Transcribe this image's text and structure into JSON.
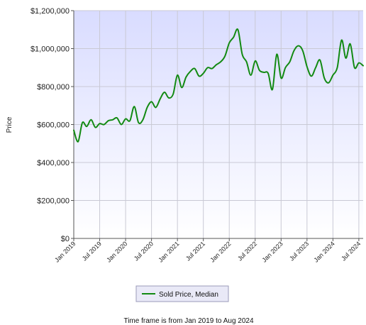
{
  "chart_data": {
    "type": "line",
    "title": "",
    "xlabel": "",
    "ylabel": "Price",
    "ylim": [
      0,
      1200000
    ],
    "yticks": [
      0,
      200000,
      400000,
      600000,
      800000,
      1000000,
      1200000
    ],
    "ytick_labels": [
      "$0",
      "$200,000",
      "$400,000",
      "$600,000",
      "$800,000",
      "$1,000,000",
      "$1,200,000"
    ],
    "xlim": [
      "2019-01",
      "2024-08"
    ],
    "xticks": [
      "2019-01",
      "2019-07",
      "2020-01",
      "2020-07",
      "2021-01",
      "2021-07",
      "2022-01",
      "2022-07",
      "2023-01",
      "2023-07",
      "2024-01",
      "2024-07"
    ],
    "xtick_labels": [
      "Jan 2019",
      "Jul 2019",
      "Jan 2020",
      "Jul 2020",
      "Jan 2021",
      "Jul 2021",
      "Jan 2022",
      "Jul 2022",
      "Jan 2023",
      "Jul 2023",
      "Jan 2024",
      "Jul 2024"
    ],
    "grid": true,
    "legend_position": "bottom-center",
    "colors": {
      "line": "#128a12",
      "plot_bg_top": "#d9dcff",
      "plot_bg_bottom": "#ffffff",
      "grid": "#c9c9d4"
    },
    "x": [
      "2019-01",
      "2019-02",
      "2019-03",
      "2019-04",
      "2019-05",
      "2019-06",
      "2019-07",
      "2019-08",
      "2019-09",
      "2019-10",
      "2019-11",
      "2019-12",
      "2020-01",
      "2020-02",
      "2020-03",
      "2020-04",
      "2020-05",
      "2020-06",
      "2020-07",
      "2020-08",
      "2020-09",
      "2020-10",
      "2020-11",
      "2020-12",
      "2021-01",
      "2021-02",
      "2021-03",
      "2021-04",
      "2021-05",
      "2021-06",
      "2021-07",
      "2021-08",
      "2021-09",
      "2021-10",
      "2021-11",
      "2021-12",
      "2022-01",
      "2022-02",
      "2022-03",
      "2022-04",
      "2022-05",
      "2022-06",
      "2022-07",
      "2022-08",
      "2022-09",
      "2022-10",
      "2022-11",
      "2022-12",
      "2023-01",
      "2023-02",
      "2023-03",
      "2023-04",
      "2023-05",
      "2023-06",
      "2023-07",
      "2023-08",
      "2023-09",
      "2023-10",
      "2023-11",
      "2023-12",
      "2024-01",
      "2024-02",
      "2024-03",
      "2024-04",
      "2024-05",
      "2024-06",
      "2024-07",
      "2024-08"
    ],
    "series": [
      {
        "name": "Sold Price, Median",
        "values": [
          570000,
          510000,
          610000,
          590000,
          625000,
          585000,
          605000,
          600000,
          620000,
          625000,
          635000,
          600000,
          630000,
          620000,
          695000,
          610000,
          625000,
          690000,
          720000,
          690000,
          735000,
          770000,
          740000,
          760000,
          860000,
          795000,
          850000,
          880000,
          895000,
          855000,
          870000,
          900000,
          895000,
          915000,
          930000,
          960000,
          1030000,
          1060000,
          1100000,
          970000,
          930000,
          860000,
          935000,
          885000,
          875000,
          870000,
          785000,
          970000,
          845000,
          900000,
          930000,
          990000,
          1015000,
          990000,
          905000,
          855000,
          900000,
          940000,
          845000,
          820000,
          860000,
          900000,
          1045000,
          950000,
          1025000,
          900000,
          925000,
          910000
        ]
      }
    ],
    "footer": "Time frame is from Jan 2019 to Aug 2024"
  }
}
